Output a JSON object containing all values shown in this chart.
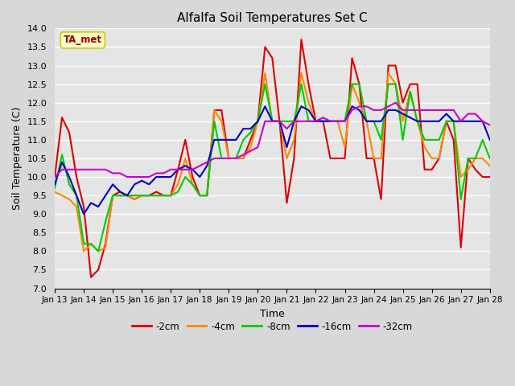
{
  "title": "Alfalfa Soil Temperatures Set C",
  "xlabel": "Time",
  "ylabel": "Soil Temperature (C)",
  "ylim": [
    7.0,
    14.0
  ],
  "yticks": [
    7.0,
    7.5,
    8.0,
    8.5,
    9.0,
    9.5,
    10.0,
    10.5,
    11.0,
    11.5,
    12.0,
    12.5,
    13.0,
    13.5,
    14.0
  ],
  "xlim": [
    0,
    15
  ],
  "xtick_positions": [
    0,
    1,
    2,
    3,
    4,
    5,
    6,
    7,
    8,
    9,
    10,
    11,
    12,
    13,
    14,
    15
  ],
  "xtick_labels": [
    "Jan 13",
    "Jan 14",
    "Jan 15",
    "Jan 16",
    "Jan 17",
    "Jan 18",
    "Jan 19",
    "Jan 20",
    "Jan 21",
    "Jan 22",
    "Jan 23",
    "Jan 24",
    "Jan 25",
    "Jan 26",
    "Jan 27",
    "Jan 28"
  ],
  "bg_color": "#d8d8d8",
  "plot_bg_color": "#e5e5e5",
  "grid_color": "#ffffff",
  "annotation_label": "TA_met",
  "annotation_text_color": "#990000",
  "annotation_bg_color": "#ffffcc",
  "annotation_border_color": "#cccc00",
  "series": [
    {
      "label": "-2cm",
      "color": "#dd0000",
      "lw": 1.5,
      "x": [
        0.0,
        0.25,
        0.5,
        0.75,
        1.0,
        1.25,
        1.5,
        1.75,
        2.0,
        2.25,
        2.5,
        2.75,
        3.0,
        3.25,
        3.5,
        3.75,
        4.0,
        4.25,
        4.5,
        4.75,
        5.0,
        5.25,
        5.5,
        5.75,
        6.0,
        6.25,
        6.5,
        6.75,
        7.0,
        7.25,
        7.5,
        7.75,
        8.0,
        8.25,
        8.5,
        8.75,
        9.0,
        9.25,
        9.5,
        9.75,
        10.0,
        10.25,
        10.5,
        10.75,
        11.0,
        11.25,
        11.5,
        11.75,
        12.0,
        12.25,
        12.5,
        12.75,
        13.0,
        13.25,
        13.5,
        13.75,
        14.0,
        14.25,
        14.5,
        14.75,
        15.0
      ],
      "y": [
        10.0,
        11.6,
        11.2,
        10.0,
        9.2,
        7.3,
        7.5,
        8.2,
        9.5,
        9.6,
        9.5,
        9.4,
        9.5,
        9.5,
        9.6,
        9.5,
        9.5,
        10.2,
        11.0,
        10.0,
        9.5,
        9.5,
        11.8,
        11.8,
        10.5,
        10.5,
        10.5,
        11.0,
        11.5,
        13.5,
        13.2,
        11.5,
        9.3,
        10.5,
        13.7,
        12.5,
        11.5,
        11.5,
        10.5,
        10.5,
        10.5,
        13.2,
        12.5,
        10.5,
        10.5,
        9.4,
        13.0,
        13.0,
        12.0,
        12.5,
        12.5,
        10.2,
        10.2,
        10.5,
        11.5,
        11.0,
        8.1,
        10.5,
        10.2,
        10.0,
        10.0
      ]
    },
    {
      "label": "-4cm",
      "color": "#ff8800",
      "lw": 1.5,
      "x": [
        0.0,
        0.25,
        0.5,
        0.75,
        1.0,
        1.25,
        1.5,
        1.75,
        2.0,
        2.25,
        2.5,
        2.75,
        3.0,
        3.25,
        3.5,
        3.75,
        4.0,
        4.25,
        4.5,
        4.75,
        5.0,
        5.25,
        5.5,
        5.75,
        6.0,
        6.25,
        6.5,
        6.75,
        7.0,
        7.25,
        7.5,
        7.75,
        8.0,
        8.25,
        8.5,
        8.75,
        9.0,
        9.25,
        9.5,
        9.75,
        10.0,
        10.25,
        10.5,
        10.75,
        11.0,
        11.25,
        11.5,
        11.75,
        12.0,
        12.25,
        12.5,
        12.75,
        13.0,
        13.25,
        13.5,
        13.75,
        14.0,
        14.25,
        14.5,
        14.75,
        15.0
      ],
      "y": [
        9.6,
        9.5,
        9.4,
        9.2,
        8.0,
        8.2,
        8.0,
        8.1,
        9.5,
        9.5,
        9.5,
        9.4,
        9.5,
        9.5,
        9.5,
        9.5,
        9.5,
        9.8,
        10.5,
        9.8,
        9.5,
        9.5,
        11.8,
        11.5,
        10.5,
        10.5,
        10.5,
        10.8,
        11.5,
        12.8,
        11.5,
        11.5,
        10.5,
        11.0,
        12.8,
        12.0,
        11.5,
        11.5,
        11.5,
        11.5,
        10.8,
        12.5,
        12.0,
        11.5,
        10.5,
        10.5,
        12.8,
        12.5,
        11.5,
        12.3,
        11.5,
        10.8,
        10.5,
        10.5,
        11.5,
        11.5,
        10.0,
        10.2,
        10.5,
        10.5,
        10.3
      ]
    },
    {
      "label": "-8cm",
      "color": "#00cc00",
      "lw": 1.5,
      "x": [
        0.0,
        0.25,
        0.5,
        0.75,
        1.0,
        1.25,
        1.5,
        1.75,
        2.0,
        2.25,
        2.5,
        2.75,
        3.0,
        3.25,
        3.5,
        3.75,
        4.0,
        4.25,
        4.5,
        4.75,
        5.0,
        5.25,
        5.5,
        5.75,
        6.0,
        6.25,
        6.5,
        6.75,
        7.0,
        7.25,
        7.5,
        7.75,
        8.0,
        8.25,
        8.5,
        8.75,
        9.0,
        9.25,
        9.5,
        9.75,
        10.0,
        10.25,
        10.5,
        10.75,
        11.0,
        11.25,
        11.5,
        11.75,
        12.0,
        12.25,
        12.5,
        12.75,
        13.0,
        13.25,
        13.5,
        13.75,
        14.0,
        14.25,
        14.5,
        14.75,
        15.0
      ],
      "y": [
        9.7,
        10.6,
        9.8,
        9.5,
        8.2,
        8.2,
        8.0,
        8.8,
        9.5,
        9.5,
        9.5,
        9.5,
        9.5,
        9.5,
        9.5,
        9.5,
        9.5,
        9.6,
        10.0,
        9.8,
        9.5,
        9.5,
        11.5,
        10.5,
        10.5,
        10.5,
        11.0,
        11.2,
        11.5,
        12.5,
        11.5,
        11.5,
        11.5,
        11.5,
        12.5,
        11.5,
        11.5,
        11.5,
        11.5,
        11.5,
        11.5,
        12.5,
        12.5,
        11.5,
        11.5,
        11.0,
        12.5,
        12.5,
        11.0,
        12.3,
        11.5,
        11.0,
        11.0,
        11.0,
        11.5,
        11.5,
        9.4,
        10.5,
        10.5,
        11.0,
        10.5
      ]
    },
    {
      "label": "-16cm",
      "color": "#0000cc",
      "lw": 1.5,
      "x": [
        0.0,
        0.25,
        0.5,
        0.75,
        1.0,
        1.25,
        1.5,
        1.75,
        2.0,
        2.25,
        2.5,
        2.75,
        3.0,
        3.25,
        3.5,
        3.75,
        4.0,
        4.25,
        4.5,
        4.75,
        5.0,
        5.25,
        5.5,
        5.75,
        6.0,
        6.25,
        6.5,
        6.75,
        7.0,
        7.25,
        7.5,
        7.75,
        8.0,
        8.25,
        8.5,
        8.75,
        9.0,
        9.25,
        9.5,
        9.75,
        10.0,
        10.25,
        10.5,
        10.75,
        11.0,
        11.25,
        11.5,
        11.75,
        12.0,
        12.25,
        12.5,
        12.75,
        13.0,
        13.25,
        13.5,
        13.75,
        14.0,
        14.25,
        14.5,
        14.75,
        15.0
      ],
      "y": [
        9.8,
        10.4,
        10.0,
        9.5,
        9.0,
        9.3,
        9.2,
        9.5,
        9.8,
        9.6,
        9.5,
        9.8,
        9.9,
        9.8,
        10.0,
        10.0,
        10.0,
        10.2,
        10.3,
        10.2,
        10.0,
        10.3,
        11.0,
        11.0,
        11.0,
        11.0,
        11.3,
        11.3,
        11.5,
        11.9,
        11.5,
        11.5,
        10.8,
        11.5,
        11.9,
        11.8,
        11.5,
        11.5,
        11.5,
        11.5,
        11.5,
        11.9,
        11.8,
        11.5,
        11.5,
        11.5,
        11.8,
        11.8,
        11.7,
        11.6,
        11.5,
        11.5,
        11.5,
        11.5,
        11.7,
        11.5,
        11.5,
        11.5,
        11.5,
        11.5,
        11.0
      ]
    },
    {
      "label": "-32cm",
      "color": "#cc00cc",
      "lw": 1.5,
      "x": [
        0.0,
        0.25,
        0.5,
        0.75,
        1.0,
        1.25,
        1.5,
        1.75,
        2.0,
        2.25,
        2.5,
        2.75,
        3.0,
        3.25,
        3.5,
        3.75,
        4.0,
        4.25,
        4.5,
        4.75,
        5.0,
        5.25,
        5.5,
        5.75,
        6.0,
        6.25,
        6.5,
        6.75,
        7.0,
        7.25,
        7.5,
        7.75,
        8.0,
        8.25,
        8.5,
        8.75,
        9.0,
        9.25,
        9.5,
        9.75,
        10.0,
        10.25,
        10.5,
        10.75,
        11.0,
        11.25,
        11.5,
        11.75,
        12.0,
        12.25,
        12.5,
        12.75,
        13.0,
        13.25,
        13.5,
        13.75,
        14.0,
        14.25,
        14.5,
        14.75,
        15.0
      ],
      "y": [
        10.0,
        10.2,
        10.2,
        10.2,
        10.2,
        10.2,
        10.2,
        10.2,
        10.1,
        10.1,
        10.0,
        10.0,
        10.0,
        10.0,
        10.1,
        10.1,
        10.2,
        10.2,
        10.2,
        10.2,
        10.3,
        10.4,
        10.5,
        10.5,
        10.5,
        10.5,
        10.6,
        10.7,
        10.8,
        11.5,
        11.5,
        11.5,
        11.3,
        11.5,
        11.5,
        11.5,
        11.5,
        11.6,
        11.5,
        11.5,
        11.5,
        11.8,
        11.9,
        11.9,
        11.8,
        11.8,
        11.9,
        12.0,
        11.8,
        11.8,
        11.8,
        11.8,
        11.8,
        11.8,
        11.8,
        11.8,
        11.5,
        11.7,
        11.7,
        11.5,
        11.4
      ]
    }
  ]
}
